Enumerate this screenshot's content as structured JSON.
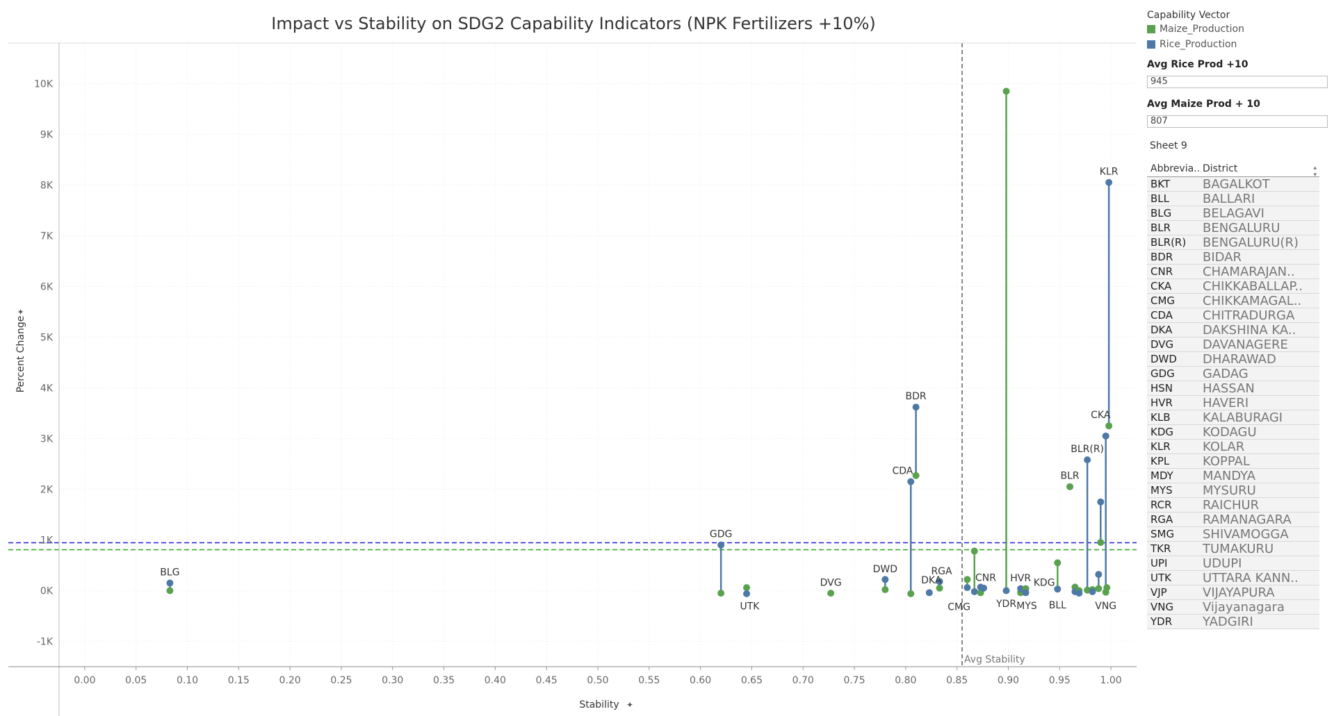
{
  "chart_data": {
    "type": "scatter",
    "title": "Impact vs Stability on SDG2 Capability Indicators (NPK Fertilizers +10%)",
    "xlabel": "Stability",
    "ylabel": "Percent Change",
    "xlim": [
      -0.025,
      1.025
    ],
    "ylim": [
      -1500,
      10800
    ],
    "x_ticks": [
      0.0,
      0.05,
      0.1,
      0.15,
      0.2,
      0.25,
      0.3,
      0.35,
      0.4,
      0.45,
      0.5,
      0.55,
      0.6,
      0.65,
      0.7,
      0.75,
      0.8,
      0.85,
      0.9,
      0.95,
      1.0
    ],
    "x_tick_labels": [
      "0.00",
      "0.05",
      "0.10",
      "0.15",
      "0.20",
      "0.25",
      "0.30",
      "0.35",
      "0.40",
      "0.45",
      "0.50",
      "0.55",
      "0.60",
      "0.65",
      "0.70",
      "0.75",
      "0.80",
      "0.85",
      "0.90",
      "0.95",
      "1.00"
    ],
    "y_ticks": [
      -1000,
      0,
      1000,
      2000,
      3000,
      4000,
      5000,
      6000,
      7000,
      8000,
      9000,
      10000
    ],
    "y_tick_labels": [
      "-1K",
      "0K",
      "1K",
      "2K",
      "3K",
      "4K",
      "5K",
      "6K",
      "7K",
      "8K",
      "9K",
      "10K"
    ],
    "grid": true,
    "series": [
      {
        "name": "Maize_Production",
        "color": "#59a14f"
      },
      {
        "name": "Rice_Production",
        "color": "#4e79a7"
      }
    ],
    "points": [
      {
        "label": "BLG",
        "x": 0.083,
        "rice": 150,
        "maize": 0
      },
      {
        "label": "GDG",
        "x": 0.62,
        "rice": 900,
        "maize": -50
      },
      {
        "label": "UTK",
        "x": 0.645,
        "rice": -60,
        "maize": 60
      },
      {
        "label": "DVG",
        "x": 0.727,
        "rice": null,
        "maize": -50
      },
      {
        "label": "DWD",
        "x": 0.78,
        "rice": 220,
        "maize": 20
      },
      {
        "label": "CDA",
        "x": 0.805,
        "rice": 2150,
        "maize": -60
      },
      {
        "label": "BDR",
        "x": 0.81,
        "rice": 3620,
        "maize": 2270
      },
      {
        "label": "DKA",
        "x": 0.823,
        "rice": -40,
        "maize": null
      },
      {
        "label": "RGA",
        "x": 0.833,
        "rice": 180,
        "maize": 50
      },
      {
        "label": "CMG",
        "x": 0.86,
        "rice": 60,
        "maize": 220
      },
      {
        "label": "",
        "x": 0.867,
        "rice": -20,
        "maize": 780
      },
      {
        "label": "",
        "x": 0.873,
        "rice": 70,
        "maize": -40
      },
      {
        "label": "CNR",
        "x": 0.876,
        "rice": 50,
        "maize": null
      },
      {
        "label": "YDR",
        "x": 0.898,
        "rice": 0,
        "maize": 9850
      },
      {
        "label": "HVR",
        "x": 0.912,
        "rice": 40,
        "maize": -40
      },
      {
        "label": "MYS",
        "x": 0.917,
        "rice": -40,
        "maize": 40
      },
      {
        "label": "BLL",
        "x": 0.948,
        "rice": 30,
        "maize": 550
      },
      {
        "label": "KDG",
        "x": 0.96,
        "rice": null,
        "maize": 2050
      },
      {
        "label": "",
        "x": 0.965,
        "rice": -20,
        "maize": 70
      },
      {
        "label": "",
        "x": 0.969,
        "rice": -50,
        "maize": 0
      },
      {
        "label": "BLR(R)",
        "x": 0.977,
        "rice": 2580,
        "maize": 10
      },
      {
        "label": "",
        "x": 0.982,
        "rice": -20,
        "maize": 20
      },
      {
        "label": "",
        "x": 0.988,
        "rice": 320,
        "maize": 40
      },
      {
        "label": "",
        "x": 0.99,
        "rice": 1750,
        "maize": 950
      },
      {
        "label": "VNG",
        "x": 0.995,
        "rice": 3050,
        "maize": -30
      },
      {
        "label": "KLR",
        "x": 0.998,
        "rice": 8050,
        "maize": 3250
      },
      {
        "label": "",
        "x": 0.996,
        "rice": null,
        "maize": 60
      }
    ],
    "point_labels": [
      {
        "text": "BLG",
        "x": 0.083,
        "y": 180,
        "pos": "above"
      },
      {
        "text": "GDG",
        "x": 0.62,
        "y": 930,
        "pos": "above"
      },
      {
        "text": "UTK",
        "x": 0.648,
        "y": -70,
        "pos": "below"
      },
      {
        "text": "DVG",
        "x": 0.727,
        "y": -30,
        "pos": "above"
      },
      {
        "text": "DWD",
        "x": 0.78,
        "y": 240,
        "pos": "above"
      },
      {
        "text": "BDR",
        "x": 0.81,
        "y": 3650,
        "pos": "above"
      },
      {
        "text": "CDA",
        "x": 0.797,
        "y": 2180,
        "pos": "above"
      },
      {
        "text": "DKA",
        "x": 0.825,
        "y": 20,
        "pos": "above"
      },
      {
        "text": "RGA",
        "x": 0.835,
        "y": 200,
        "pos": "above"
      },
      {
        "text": "CMG",
        "x": 0.852,
        "y": -80,
        "pos": "below"
      },
      {
        "text": "CNR",
        "x": 0.878,
        "y": 70,
        "pos": "above"
      },
      {
        "text": "YDR",
        "x": 0.898,
        "y": -20,
        "pos": "below"
      },
      {
        "text": "HVR",
        "x": 0.912,
        "y": 60,
        "pos": "above"
      },
      {
        "text": "MYS",
        "x": 0.918,
        "y": -60,
        "pos": "below"
      },
      {
        "text": "KDG",
        "x": 0.935,
        "y": -30,
        "pos": "above"
      },
      {
        "text": "BLL",
        "x": 0.948,
        "y": -50,
        "pos": "below"
      },
      {
        "text": "BLR",
        "x": 0.96,
        "y": 2080,
        "pos": "above"
      },
      {
        "text": "BLR(R)",
        "x": 0.977,
        "y": 2610,
        "pos": "above"
      },
      {
        "text": "CKA",
        "x": 0.99,
        "y": 3280,
        "pos": "above"
      },
      {
        "text": "KLR",
        "x": 0.998,
        "y": 8080,
        "pos": "above"
      },
      {
        "text": "VNG",
        "x": 0.995,
        "y": -60,
        "pos": "below"
      }
    ],
    "reference_lines": [
      {
        "axis": "y",
        "value": 945,
        "color": "#1f1fd6"
      },
      {
        "axis": "y",
        "value": 807,
        "color": "#3aa829"
      },
      {
        "axis": "x",
        "value": 0.855,
        "color": "#666666",
        "label": "Avg Stability"
      }
    ]
  },
  "legend": {
    "title": "Capability Vector",
    "items": [
      {
        "label": "Maize_Production",
        "color": "#59a14f"
      },
      {
        "label": "Rice_Production",
        "color": "#4e79a7"
      }
    ]
  },
  "params": {
    "rice_label": "Avg Rice Prod +10",
    "rice_value": "945",
    "maize_label": "Avg Maize Prod + 10",
    "maize_value": "807"
  },
  "sheet": {
    "title": "Sheet 9",
    "col_abbrev": "Abbrevia..",
    "col_district": "District",
    "sort_icon": "sort-icon",
    "rows": [
      {
        "abbr": "BKT",
        "district": "BAGALKOT"
      },
      {
        "abbr": "BLL",
        "district": "BALLARI"
      },
      {
        "abbr": "BLG",
        "district": "BELAGAVI"
      },
      {
        "abbr": "BLR",
        "district": "BENGALURU"
      },
      {
        "abbr": "BLR(R)",
        "district": "BENGALURU(R)"
      },
      {
        "abbr": "BDR",
        "district": "BIDAR"
      },
      {
        "abbr": "CNR",
        "district": "CHAMARAJAN.."
      },
      {
        "abbr": "CKA",
        "district": "CHIKKABALLAP.."
      },
      {
        "abbr": "CMG",
        "district": "CHIKKAMAGAL.."
      },
      {
        "abbr": "CDA",
        "district": "CHITRADURGA"
      },
      {
        "abbr": "DKA",
        "district": "DAKSHINA KA.."
      },
      {
        "abbr": "DVG",
        "district": "DAVANAGERE"
      },
      {
        "abbr": "DWD",
        "district": "DHARAWAD"
      },
      {
        "abbr": "GDG",
        "district": "GADAG"
      },
      {
        "abbr": "HSN",
        "district": "HASSAN"
      },
      {
        "abbr": "HVR",
        "district": "HAVERI"
      },
      {
        "abbr": "KLB",
        "district": "KALABURAGI"
      },
      {
        "abbr": "KDG",
        "district": "KODAGU"
      },
      {
        "abbr": "KLR",
        "district": "KOLAR"
      },
      {
        "abbr": "KPL",
        "district": "KOPPAL"
      },
      {
        "abbr": "MDY",
        "district": "MANDYA"
      },
      {
        "abbr": "MYS",
        "district": "MYSURU"
      },
      {
        "abbr": "RCR",
        "district": "RAICHUR"
      },
      {
        "abbr": "RGA",
        "district": "RAMANAGARA"
      },
      {
        "abbr": "SMG",
        "district": "SHIVAMOGGA"
      },
      {
        "abbr": "TKR",
        "district": "TUMAKURU"
      },
      {
        "abbr": "UPI",
        "district": "UDUPI"
      },
      {
        "abbr": "UTK",
        "district": "UTTARA KANN.."
      },
      {
        "abbr": "VJP",
        "district": "VIJAYAPURA"
      },
      {
        "abbr": "VNG",
        "district": "Vijayanagara"
      },
      {
        "abbr": "YDR",
        "district": "YADGIRI"
      }
    ]
  }
}
